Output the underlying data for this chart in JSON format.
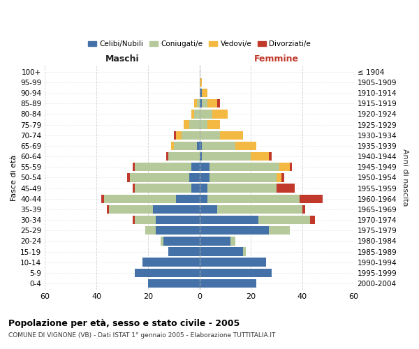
{
  "age_groups": [
    "0-4",
    "5-9",
    "10-14",
    "15-19",
    "20-24",
    "25-29",
    "30-34",
    "35-39",
    "40-44",
    "45-49",
    "50-54",
    "55-59",
    "60-64",
    "65-69",
    "70-74",
    "75-79",
    "80-84",
    "85-89",
    "90-94",
    "95-99",
    "100+"
  ],
  "birth_years": [
    "2000-2004",
    "1995-1999",
    "1990-1994",
    "1985-1989",
    "1980-1984",
    "1975-1979",
    "1970-1974",
    "1965-1969",
    "1960-1964",
    "1955-1959",
    "1950-1954",
    "1945-1949",
    "1940-1944",
    "1935-1939",
    "1930-1934",
    "1925-1929",
    "1920-1924",
    "1915-1919",
    "1910-1914",
    "1905-1909",
    "≤ 1904"
  ],
  "maschi": {
    "celibi": [
      20,
      25,
      22,
      12,
      14,
      17,
      17,
      18,
      9,
      3,
      4,
      3,
      0,
      1,
      0,
      0,
      0,
      0,
      0,
      0,
      0
    ],
    "coniugati": [
      0,
      0,
      0,
      0,
      1,
      4,
      8,
      17,
      28,
      22,
      23,
      22,
      12,
      9,
      7,
      4,
      2,
      1,
      0,
      0,
      0
    ],
    "vedovi": [
      0,
      0,
      0,
      0,
      0,
      0,
      0,
      0,
      0,
      0,
      0,
      0,
      0,
      1,
      2,
      2,
      1,
      1,
      0,
      0,
      0
    ],
    "divorziati": [
      0,
      0,
      0,
      0,
      0,
      0,
      1,
      1,
      1,
      1,
      1,
      1,
      1,
      0,
      1,
      0,
      0,
      0,
      0,
      0,
      0
    ]
  },
  "femmine": {
    "nubili": [
      22,
      28,
      26,
      17,
      12,
      27,
      23,
      7,
      3,
      3,
      4,
      4,
      1,
      1,
      0,
      0,
      0,
      1,
      1,
      0,
      0
    ],
    "coniugate": [
      0,
      0,
      0,
      1,
      2,
      8,
      20,
      33,
      36,
      27,
      26,
      27,
      19,
      13,
      8,
      3,
      5,
      2,
      0,
      0,
      0
    ],
    "vedove": [
      0,
      0,
      0,
      0,
      0,
      0,
      0,
      0,
      0,
      0,
      2,
      4,
      7,
      8,
      9,
      5,
      6,
      4,
      2,
      1,
      0
    ],
    "divorziate": [
      0,
      0,
      0,
      0,
      0,
      0,
      2,
      1,
      9,
      7,
      1,
      1,
      1,
      0,
      0,
      0,
      0,
      1,
      0,
      0,
      0
    ]
  },
  "colors": {
    "celibi": "#4472a8",
    "coniugati": "#b5c99a",
    "vedovi": "#f4b942",
    "divorziati": "#c0392b"
  },
  "title": "Popolazione per età, sesso e stato civile - 2005",
  "subtitle": "COMUNE DI VIGNONE (VB) - Dati ISTAT 1° gennaio 2005 - Elaborazione TUTTITALIA.IT",
  "xlabel_left": "Maschi",
  "xlabel_right": "Femmine",
  "ylabel_left": "Fasce di età",
  "ylabel_right": "Anni di nascita",
  "xlim": 60,
  "background_color": "#ffffff",
  "grid_color": "#cccccc"
}
